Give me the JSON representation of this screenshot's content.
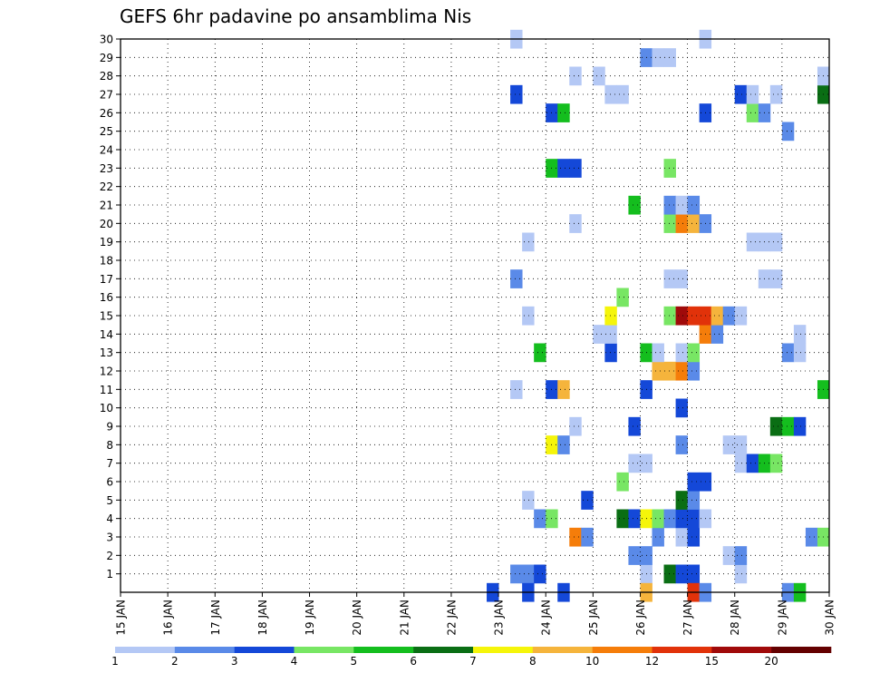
{
  "chart_data": {
    "type": "heatmap",
    "title": "GEFS 6hr padavine po ansamblima Nis",
    "xlabel": "",
    "ylabel": "",
    "x_ticks": [
      "15 JAN",
      "16 JAN",
      "17 JAN",
      "18 JAN",
      "19 JAN",
      "20 JAN",
      "21 JAN",
      "22 JAN",
      "23 JAN",
      "24 JAN",
      "25 JAN",
      "26 JAN",
      "27 JAN",
      "28 JAN",
      "29 JAN",
      "30 JAN"
    ],
    "y_ticks": [
      1,
      2,
      3,
      4,
      5,
      6,
      7,
      8,
      9,
      10,
      11,
      12,
      13,
      14,
      15,
      16,
      17,
      18,
      19,
      20,
      21,
      22,
      23,
      24,
      25,
      26,
      27,
      28,
      29,
      30
    ],
    "xlim": [
      0,
      60
    ],
    "ylim": [
      0,
      30
    ],
    "x_unit": "6-hour steps from 15 JAN 00Z",
    "grid": true,
    "legend": {
      "position": "bottom",
      "thresholds": [
        "1",
        "2",
        "3",
        "4",
        "5",
        "6",
        "7",
        "8",
        "10",
        "12",
        "15",
        "20"
      ],
      "colors": [
        "#b4c8f5",
        "#5a8ae8",
        "#1448d8",
        "#78e664",
        "#14be1e",
        "#0a6e14",
        "#f5f50a",
        "#f5b43c",
        "#f57d0a",
        "#e1320a",
        "#a00a0a",
        "#640000"
      ]
    },
    "cells": [
      {
        "ens": 1,
        "step": 34,
        "cls": 1
      },
      {
        "ens": 1,
        "step": 35,
        "cls": 1
      },
      {
        "ens": 1,
        "step": 36,
        "cls": 2
      },
      {
        "ens": 1,
        "step": 45,
        "cls": 0
      },
      {
        "ens": 1,
        "step": 47,
        "cls": 5
      },
      {
        "ens": 1,
        "step": 48,
        "cls": 2
      },
      {
        "ens": 1,
        "step": 49,
        "cls": 2
      },
      {
        "ens": 1,
        "step": 53,
        "cls": 0
      },
      {
        "ens": 2,
        "step": 45,
        "cls": 1
      },
      {
        "ens": 2,
        "step": 44,
        "cls": 1
      },
      {
        "ens": 2,
        "step": 52,
        "cls": 0
      },
      {
        "ens": 2,
        "step": 53,
        "cls": 1
      },
      {
        "ens": 3,
        "step": 39,
        "cls": 8
      },
      {
        "ens": 3,
        "step": 40,
        "cls": 1
      },
      {
        "ens": 3,
        "step": 46,
        "cls": 1
      },
      {
        "ens": 3,
        "step": 48,
        "cls": 0
      },
      {
        "ens": 3,
        "step": 49,
        "cls": 2
      },
      {
        "ens": 3,
        "step": 59,
        "cls": 1
      },
      {
        "ens": 3,
        "step": 60,
        "cls": 3
      },
      {
        "ens": 4,
        "step": 36,
        "cls": 1
      },
      {
        "ens": 4,
        "step": 37,
        "cls": 3
      },
      {
        "ens": 4,
        "step": 43,
        "cls": 5
      },
      {
        "ens": 4,
        "step": 44,
        "cls": 2
      },
      {
        "ens": 4,
        "step": 45,
        "cls": 6
      },
      {
        "ens": 4,
        "step": 46,
        "cls": 3
      },
      {
        "ens": 4,
        "step": 47,
        "cls": 1
      },
      {
        "ens": 4,
        "step": 48,
        "cls": 2
      },
      {
        "ens": 4,
        "step": 49,
        "cls": 2
      },
      {
        "ens": 4,
        "step": 50,
        "cls": 0
      },
      {
        "ens": 5,
        "step": 35,
        "cls": 0
      },
      {
        "ens": 5,
        "step": 40,
        "cls": 2
      },
      {
        "ens": 5,
        "step": 48,
        "cls": 5
      },
      {
        "ens": 5,
        "step": 49,
        "cls": 1
      },
      {
        "ens": 6,
        "step": 43,
        "cls": 3
      },
      {
        "ens": 6,
        "step": 49,
        "cls": 2
      },
      {
        "ens": 6,
        "step": 50,
        "cls": 2
      },
      {
        "ens": 7,
        "step": 44,
        "cls": 0
      },
      {
        "ens": 7,
        "step": 45,
        "cls": 0
      },
      {
        "ens": 7,
        "step": 53,
        "cls": 0
      },
      {
        "ens": 7,
        "step": 54,
        "cls": 2
      },
      {
        "ens": 7,
        "step": 55,
        "cls": 4
      },
      {
        "ens": 7,
        "step": 56,
        "cls": 3
      },
      {
        "ens": 8,
        "step": 37,
        "cls": 6
      },
      {
        "ens": 8,
        "step": 38,
        "cls": 1
      },
      {
        "ens": 8,
        "step": 48,
        "cls": 1
      },
      {
        "ens": 8,
        "step": 52,
        "cls": 0
      },
      {
        "ens": 8,
        "step": 53,
        "cls": 0
      },
      {
        "ens": 9,
        "step": 39,
        "cls": 0
      },
      {
        "ens": 9,
        "step": 44,
        "cls": 2
      },
      {
        "ens": 9,
        "step": 56,
        "cls": 5
      },
      {
        "ens": 9,
        "step": 57,
        "cls": 4
      },
      {
        "ens": 9,
        "step": 58,
        "cls": 2
      },
      {
        "ens": 10,
        "step": 48,
        "cls": 2
      },
      {
        "ens": 11,
        "step": 34,
        "cls": 0
      },
      {
        "ens": 11,
        "step": 37,
        "cls": 2
      },
      {
        "ens": 11,
        "step": 38,
        "cls": 7
      },
      {
        "ens": 11,
        "step": 45,
        "cls": 2
      },
      {
        "ens": 11,
        "step": 60,
        "cls": 4
      },
      {
        "ens": 12,
        "step": 46,
        "cls": 7
      },
      {
        "ens": 12,
        "step": 47,
        "cls": 7
      },
      {
        "ens": 12,
        "step": 48,
        "cls": 8
      },
      {
        "ens": 12,
        "step": 49,
        "cls": 1
      },
      {
        "ens": 13,
        "step": 36,
        "cls": 4
      },
      {
        "ens": 13,
        "step": 42,
        "cls": 2
      },
      {
        "ens": 13,
        "step": 45,
        "cls": 4
      },
      {
        "ens": 13,
        "step": 46,
        "cls": 0
      },
      {
        "ens": 13,
        "step": 48,
        "cls": 0
      },
      {
        "ens": 13,
        "step": 49,
        "cls": 3
      },
      {
        "ens": 13,
        "step": 57,
        "cls": 1
      },
      {
        "ens": 13,
        "step": 58,
        "cls": 0
      },
      {
        "ens": 14,
        "step": 41,
        "cls": 0
      },
      {
        "ens": 14,
        "step": 42,
        "cls": 0
      },
      {
        "ens": 14,
        "step": 50,
        "cls": 8
      },
      {
        "ens": 14,
        "step": 51,
        "cls": 1
      },
      {
        "ens": 14,
        "step": 58,
        "cls": 0
      },
      {
        "ens": 15,
        "step": 35,
        "cls": 0
      },
      {
        "ens": 15,
        "step": 42,
        "cls": 6
      },
      {
        "ens": 15,
        "step": 47,
        "cls": 3
      },
      {
        "ens": 15,
        "step": 48,
        "cls": 10
      },
      {
        "ens": 15,
        "step": 49,
        "cls": 9
      },
      {
        "ens": 15,
        "step": 50,
        "cls": 9
      },
      {
        "ens": 15,
        "step": 51,
        "cls": 7
      },
      {
        "ens": 15,
        "step": 52,
        "cls": 1
      },
      {
        "ens": 15,
        "step": 53,
        "cls": 0
      },
      {
        "ens": 16,
        "step": 43,
        "cls": 3
      },
      {
        "ens": 17,
        "step": 34,
        "cls": 1
      },
      {
        "ens": 17,
        "step": 47,
        "cls": 0
      },
      {
        "ens": 17,
        "step": 48,
        "cls": 0
      },
      {
        "ens": 17,
        "step": 55,
        "cls": 0
      },
      {
        "ens": 17,
        "step": 56,
        "cls": 0
      },
      {
        "ens": 19,
        "step": 35,
        "cls": 0
      },
      {
        "ens": 19,
        "step": 54,
        "cls": 0
      },
      {
        "ens": 19,
        "step": 55,
        "cls": 0
      },
      {
        "ens": 19,
        "step": 56,
        "cls": 0
      },
      {
        "ens": 20,
        "step": 39,
        "cls": 0
      },
      {
        "ens": 20,
        "step": 47,
        "cls": 3
      },
      {
        "ens": 20,
        "step": 48,
        "cls": 8
      },
      {
        "ens": 20,
        "step": 49,
        "cls": 7
      },
      {
        "ens": 20,
        "step": 50,
        "cls": 1
      },
      {
        "ens": 21,
        "step": 44,
        "cls": 4
      },
      {
        "ens": 21,
        "step": 47,
        "cls": 1
      },
      {
        "ens": 21,
        "step": 48,
        "cls": 0
      },
      {
        "ens": 21,
        "step": 49,
        "cls": 1
      },
      {
        "ens": 23,
        "step": 37,
        "cls": 4
      },
      {
        "ens": 23,
        "step": 38,
        "cls": 2
      },
      {
        "ens": 23,
        "step": 39,
        "cls": 2
      },
      {
        "ens": 23,
        "step": 47,
        "cls": 3
      },
      {
        "ens": 25,
        "step": 57,
        "cls": 1
      },
      {
        "ens": 26,
        "step": 37,
        "cls": 2
      },
      {
        "ens": 26,
        "step": 38,
        "cls": 4
      },
      {
        "ens": 26,
        "step": 50,
        "cls": 2
      },
      {
        "ens": 26,
        "step": 54,
        "cls": 3
      },
      {
        "ens": 26,
        "step": 55,
        "cls": 1
      },
      {
        "ens": 27,
        "step": 34,
        "cls": 2
      },
      {
        "ens": 27,
        "step": 42,
        "cls": 0
      },
      {
        "ens": 27,
        "step": 43,
        "cls": 0
      },
      {
        "ens": 27,
        "step": 53,
        "cls": 2
      },
      {
        "ens": 27,
        "step": 54,
        "cls": 0
      },
      {
        "ens": 27,
        "step": 56,
        "cls": 0
      },
      {
        "ens": 27,
        "step": 60,
        "cls": 5
      },
      {
        "ens": 28,
        "step": 39,
        "cls": 0
      },
      {
        "ens": 28,
        "step": 41,
        "cls": 0
      },
      {
        "ens": 28,
        "step": 60,
        "cls": 0
      },
      {
        "ens": 29,
        "step": 45,
        "cls": 1
      },
      {
        "ens": 29,
        "step": 46,
        "cls": 0
      },
      {
        "ens": 29,
        "step": 47,
        "cls": 0
      },
      {
        "ens": 30,
        "step": 34,
        "cls": 0
      },
      {
        "ens": 30,
        "step": 50,
        "cls": 0
      },
      {
        "ens": 0,
        "step": 32,
        "cls": 2
      },
      {
        "ens": 0,
        "step": 35,
        "cls": 2
      },
      {
        "ens": 0,
        "step": 38,
        "cls": 2
      },
      {
        "ens": 0,
        "step": 45,
        "cls": 7
      },
      {
        "ens": 0,
        "step": 49,
        "cls": 9
      },
      {
        "ens": 0,
        "step": 50,
        "cls": 1
      },
      {
        "ens": 0,
        "step": 57,
        "cls": 1
      },
      {
        "ens": 0,
        "step": 58,
        "cls": 4
      }
    ]
  }
}
